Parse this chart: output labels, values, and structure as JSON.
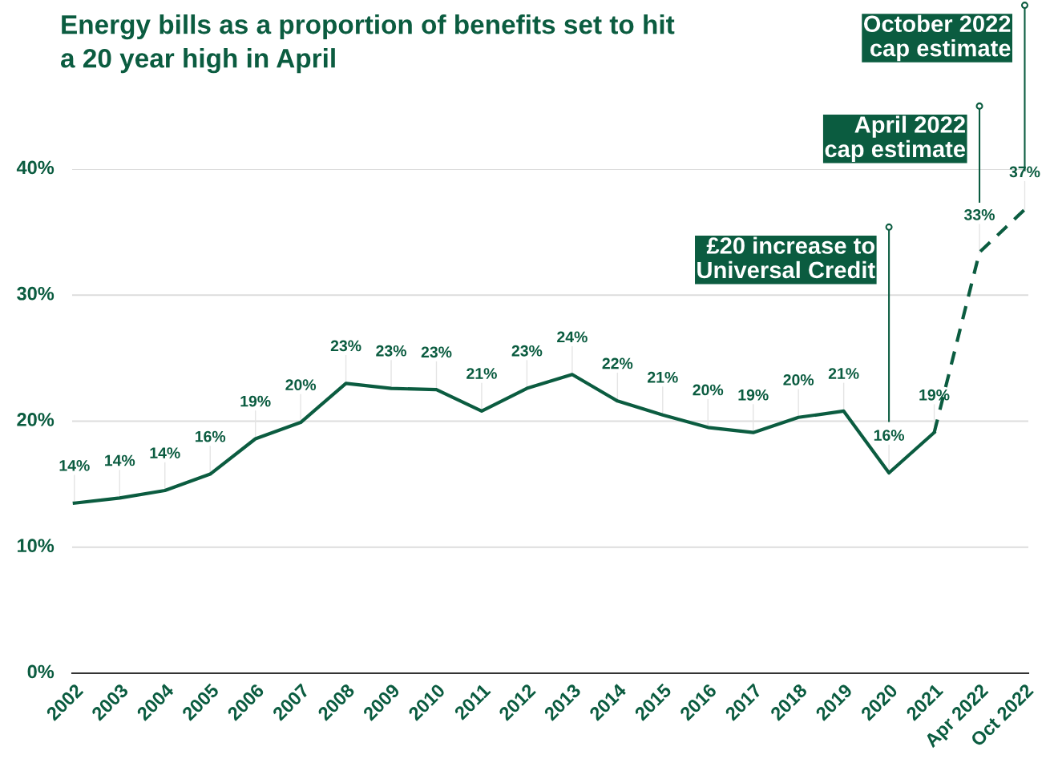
{
  "chart_data": {
    "type": "line",
    "title": "Energy bills as a proportion of benefits set to hit\na 20 year high in April",
    "categories": [
      "2002",
      "2003",
      "2004",
      "2005",
      "2006",
      "2007",
      "2008",
      "2009",
      "2010",
      "2011",
      "2012",
      "2013",
      "2014",
      "2015",
      "2016",
      "2017",
      "2018",
      "2019",
      "2020",
      "2021",
      "Apr 2022",
      "Oct 2022"
    ],
    "series": [
      {
        "color": "#0b5c40",
        "line_style": "solid",
        "values": [
          13.5,
          13.9,
          14.5,
          15.8,
          18.6,
          19.9,
          23.0,
          22.6,
          22.5,
          20.8,
          22.6,
          23.7,
          21.6,
          20.5,
          19.5,
          19.1,
          20.3,
          20.8,
          15.9,
          19.1,
          null,
          null
        ],
        "value_labels": [
          "14%",
          "14%",
          "14%",
          "16%",
          "19%",
          "20%",
          "23%",
          "23%",
          "23%",
          "21%",
          "23%",
          "24%",
          "22%",
          "21%",
          "20%",
          "19%",
          "20%",
          "21%",
          "16%",
          "19%",
          null,
          null
        ]
      },
      {
        "color": "#0b5c40",
        "line_style": "dashed",
        "values": [
          null,
          null,
          null,
          null,
          null,
          null,
          null,
          null,
          null,
          null,
          null,
          null,
          null,
          null,
          null,
          null,
          null,
          null,
          null,
          19.1,
          33.4,
          36.8
        ],
        "value_labels": [
          null,
          null,
          null,
          null,
          null,
          null,
          null,
          null,
          null,
          null,
          null,
          null,
          null,
          null,
          null,
          null,
          null,
          null,
          null,
          null,
          "33%",
          "37%"
        ]
      }
    ],
    "ylim": [
      0,
      40
    ],
    "yticks": [
      {
        "value": 0,
        "label": "0%"
      },
      {
        "value": 10,
        "label": "10%"
      },
      {
        "value": 20,
        "label": "20%"
      },
      {
        "value": 30,
        "label": "30%"
      },
      {
        "value": 40,
        "label": "40%"
      }
    ],
    "grid": "y",
    "legend": false,
    "marker": "none",
    "annotations": [
      "£20 increase to\nUniversal Credit",
      "April 2022\ncap estimate",
      "October 2022\ncap estimate"
    ]
  }
}
